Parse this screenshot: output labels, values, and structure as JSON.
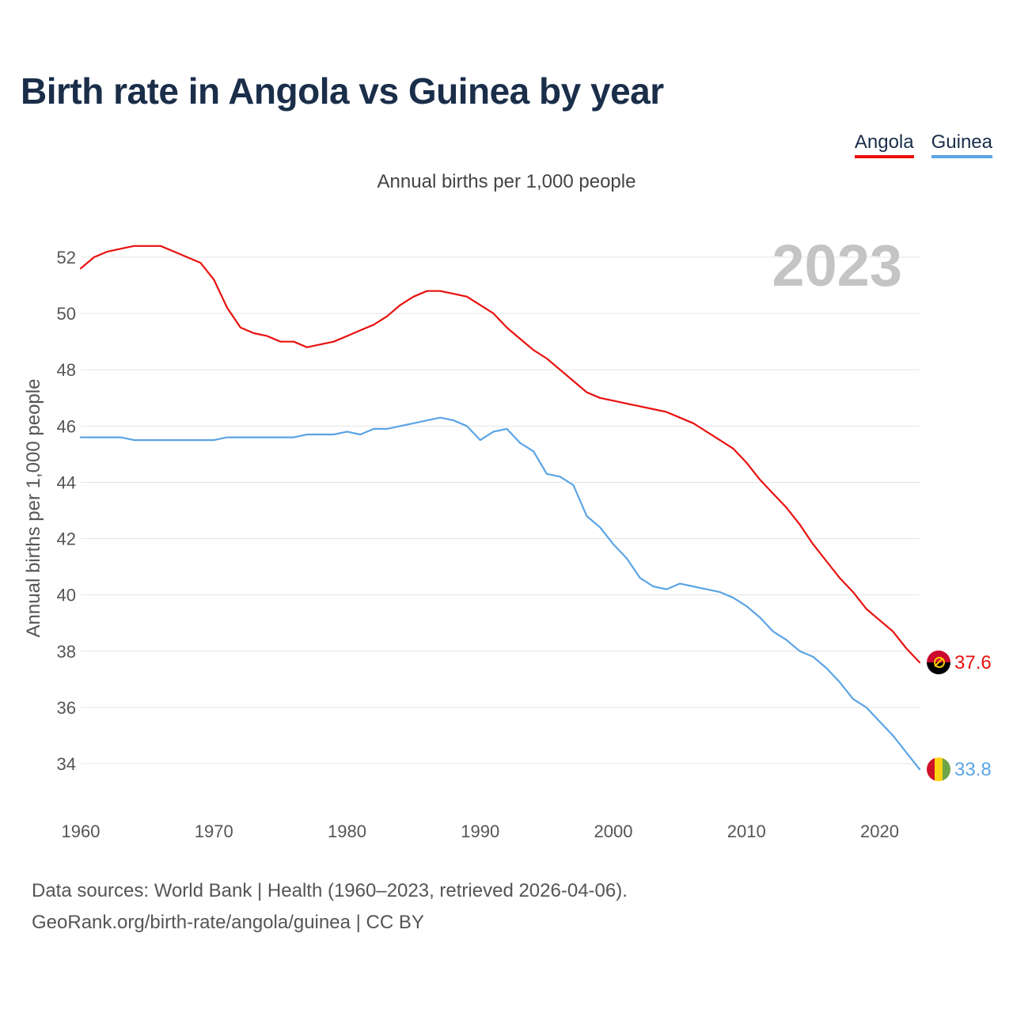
{
  "title": "Birth rate in Angola vs Guinea by year",
  "legend": {
    "angola": "Angola",
    "guinea": "Guinea"
  },
  "subtitle": "Annual births per 1,000 people",
  "source": {
    "line1": "Data sources: World Bank | Health (1960–2023, retrieved 2026-04-06).",
    "line2": "GeoRank.org/birth-rate/angola/guinea | CC BY"
  },
  "chart_data": {
    "type": "line",
    "title": "Birth rate in Angola vs Guinea by year",
    "ylabel": "Annual births per 1,000 people",
    "xlabel": "",
    "watermark_year": "2023",
    "xlim": [
      1960,
      2023
    ],
    "ylim": [
      33,
      53
    ],
    "x_ticks": [
      1960,
      1970,
      1980,
      1990,
      2000,
      2010,
      2020
    ],
    "y_ticks": [
      34,
      36,
      38,
      40,
      42,
      44,
      46,
      48,
      50,
      52
    ],
    "grid": true,
    "legend_position": "top-right",
    "x": [
      1960,
      1961,
      1962,
      1963,
      1964,
      1965,
      1966,
      1967,
      1968,
      1969,
      1970,
      1971,
      1972,
      1973,
      1974,
      1975,
      1976,
      1977,
      1978,
      1979,
      1980,
      1981,
      1982,
      1983,
      1984,
      1985,
      1986,
      1987,
      1988,
      1989,
      1990,
      1991,
      1992,
      1993,
      1994,
      1995,
      1996,
      1997,
      1998,
      1999,
      2000,
      2001,
      2002,
      2003,
      2004,
      2005,
      2006,
      2007,
      2008,
      2009,
      2010,
      2011,
      2012,
      2013,
      2014,
      2015,
      2016,
      2017,
      2018,
      2019,
      2020,
      2021,
      2022,
      2023
    ],
    "series": [
      {
        "name": "Angola",
        "color": "#e8110f",
        "end_label": "37.6",
        "values": [
          51.6,
          52.0,
          52.2,
          52.3,
          52.4,
          52.4,
          52.4,
          52.2,
          52.0,
          51.8,
          51.2,
          50.2,
          49.5,
          49.3,
          49.2,
          49.0,
          49.0,
          48.8,
          48.9,
          49.0,
          49.2,
          49.4,
          49.6,
          49.9,
          50.3,
          50.6,
          50.8,
          50.8,
          50.7,
          50.6,
          50.3,
          50.0,
          49.5,
          49.1,
          48.7,
          48.4,
          48.0,
          47.6,
          47.2,
          47.0,
          46.9,
          46.8,
          46.7,
          46.6,
          46.5,
          46.3,
          46.1,
          45.8,
          45.5,
          45.2,
          44.7,
          44.1,
          43.6,
          43.1,
          42.5,
          41.8,
          41.2,
          40.6,
          40.1,
          39.5,
          39.1,
          38.7,
          38.1,
          37.6
        ]
      },
      {
        "name": "Guinea",
        "color": "#5ba4e5",
        "end_label": "33.8",
        "values": [
          45.6,
          45.6,
          45.6,
          45.6,
          45.5,
          45.5,
          45.5,
          45.5,
          45.5,
          45.5,
          45.5,
          45.6,
          45.6,
          45.6,
          45.6,
          45.6,
          45.6,
          45.7,
          45.7,
          45.7,
          45.8,
          45.7,
          45.9,
          45.9,
          46.0,
          46.1,
          46.2,
          46.3,
          46.2,
          46.0,
          45.5,
          45.8,
          45.9,
          45.4,
          45.1,
          44.3,
          44.2,
          43.9,
          42.8,
          42.4,
          41.8,
          41.3,
          40.6,
          40.3,
          40.2,
          40.4,
          40.3,
          40.2,
          40.1,
          39.9,
          39.6,
          39.2,
          38.7,
          38.4,
          38.0,
          37.8,
          37.4,
          36.9,
          36.3,
          36.0,
          35.5,
          35.0,
          34.4,
          33.8
        ]
      }
    ]
  }
}
